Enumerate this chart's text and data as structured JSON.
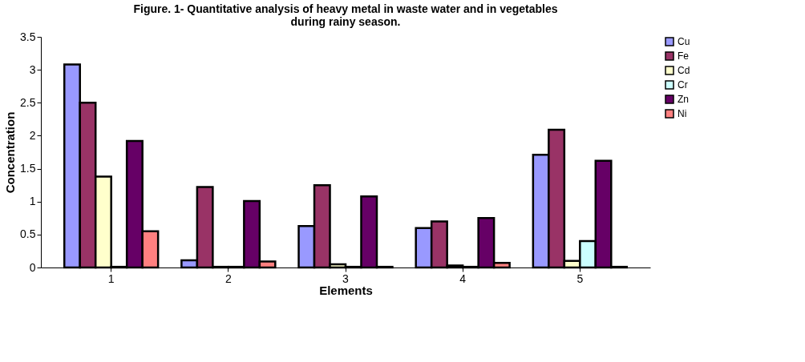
{
  "chart_data": {
    "type": "bar",
    "title": [
      "Figure. 1- Quantitative  analysis of heavy metal in waste water  and  in vegetables",
      "during rainy season."
    ],
    "xlabel": "Elements",
    "ylabel": "Concentration",
    "categories": [
      "1",
      "2",
      "3",
      "4",
      "5"
    ],
    "series": [
      {
        "name": "Cu",
        "color": "#9999ff",
        "values": [
          3.08,
          0.11,
          0.63,
          0.6,
          1.71
        ]
      },
      {
        "name": "Fe",
        "color": "#993366",
        "values": [
          2.5,
          1.22,
          1.25,
          0.7,
          2.09
        ]
      },
      {
        "name": "Cd",
        "color": "#ffffcc",
        "values": [
          1.38,
          0.01,
          0.05,
          0.03,
          0.1
        ]
      },
      {
        "name": "Cr",
        "color": "#ccffff",
        "values": [
          0.01,
          0.01,
          0.01,
          0.01,
          0.4
        ]
      },
      {
        "name": "Zn",
        "color": "#660066",
        "values": [
          1.92,
          1.01,
          1.08,
          0.75,
          1.62
        ]
      },
      {
        "name": "Ni",
        "color": "#ff8080",
        "values": [
          0.55,
          0.09,
          0.01,
          0.07,
          0.01
        ]
      }
    ],
    "ylim": [
      0,
      3.5
    ],
    "yticks": [
      0,
      0.5,
      1,
      1.5,
      2,
      2.5,
      3,
      3.5
    ],
    "grid": false,
    "legend": "right"
  }
}
